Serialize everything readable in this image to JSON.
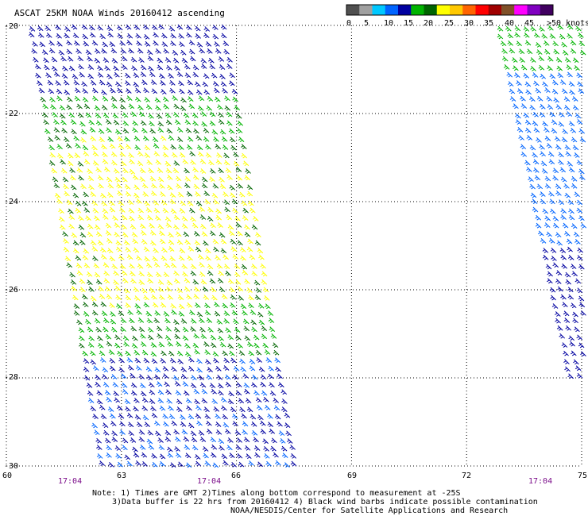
{
  "title": "ASCAT 25KM NOAA Winds 20160412 ascending",
  "legend": {
    "colors": [
      "#505050",
      "#a0a0a0",
      "#00c8ff",
      "#0064ff",
      "#0000a0",
      "#00b400",
      "#006400",
      "#ffff00",
      "#ffc800",
      "#ff6400",
      "#ff0000",
      "#a00000",
      "#805028",
      "#ff00ff",
      "#8000c0",
      "#400060"
    ],
    "labels": [
      "0",
      "5",
      "10",
      "15",
      "20",
      "25",
      "30",
      "35",
      "40",
      "45",
      ">50 knots"
    ]
  },
  "axes": {
    "lon_labels": [
      "60",
      "63",
      "66",
      "69",
      "72",
      "75"
    ],
    "lat_labels": [
      "-20",
      "-22",
      "-24",
      "-26",
      "-28",
      "-30"
    ]
  },
  "times": [
    "17:04",
    "17:04",
    "17:04"
  ],
  "notes": [
    "Note: 1) Times are GMT 2)Times along bottom correspond to measurement at -25S",
    "3)Data buffer is 22 hrs from 20160412 4) Black wind barbs indicate possible contamination",
    "NOAA/NESDIS/Center for Satellite Applications and Research"
  ],
  "wind_swaths": [
    {
      "region": "west swath",
      "lon_range": [
        60.6,
        67.8
      ],
      "lat_range": [
        -30,
        -20
      ],
      "speed_bands": [
        {
          "description": "dark blue 15-20 kt",
          "lat_range": [
            -21.5,
            -20
          ],
          "color": "#0000a0"
        },
        {
          "description": "green 20-25 kt",
          "lat_range": [
            -27.5,
            -21.5
          ],
          "color": "#00b400"
        },
        {
          "description": "yellow 25-30 kt core",
          "lat_range": [
            -26.2,
            -22.8
          ],
          "color": "#ffff00"
        },
        {
          "description": "blue 15-20 kt",
          "lat_range": [
            -30,
            -27.5
          ],
          "color": "#0000a0"
        }
      ]
    },
    {
      "region": "east swath",
      "lon_range": [
        72.8,
        75
      ],
      "lat_range": [
        -28,
        -20
      ],
      "speed_bands": [
        {
          "description": "green 20-25 kt",
          "lat_range": [
            -21,
            -20
          ],
          "color": "#00b400"
        },
        {
          "description": "blue 10-15 kt",
          "lat_range": [
            -25,
            -21
          ],
          "color": "#0064ff"
        },
        {
          "description": "dark blue 15-20 kt",
          "lat_range": [
            -28,
            -25
          ],
          "color": "#0000a0"
        }
      ]
    }
  ]
}
